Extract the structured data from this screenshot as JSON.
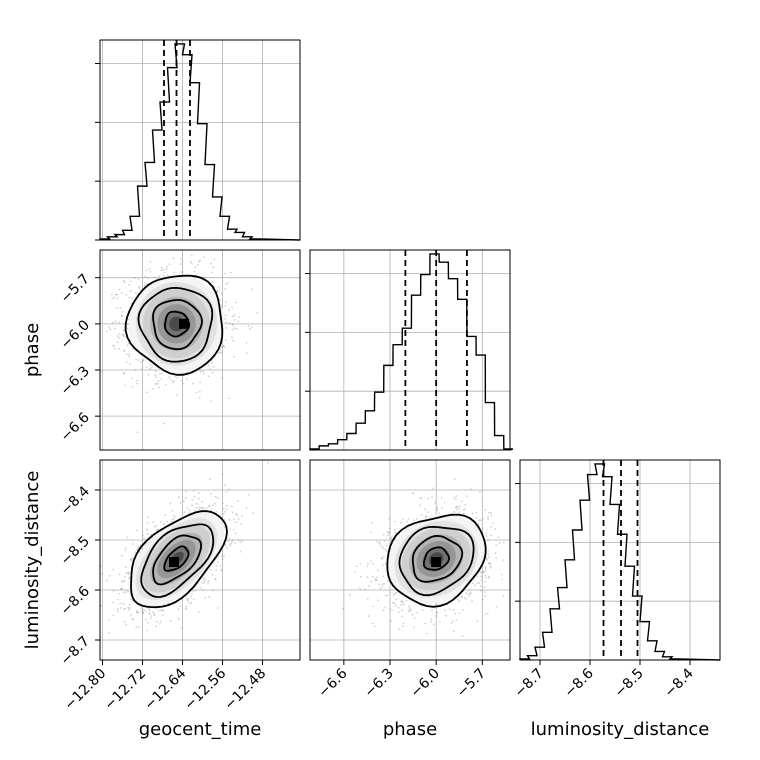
{
  "chart_data": {
    "type": "corner",
    "parameters": [
      "geocent_time",
      "phase",
      "luminosity_distance"
    ],
    "axes_titles": {
      "bottom": [
        "geocent_time",
        "phase",
        "luminosity_distance"
      ],
      "left": [
        "",
        "phase",
        "luminosity_distance"
      ]
    },
    "ranges": {
      "geocent_time": [
        -12.805,
        -12.405
      ],
      "phase": [
        -6.82,
        -5.52
      ],
      "luminosity_distance": [
        -8.74,
        -8.34
      ]
    },
    "ticks": {
      "geocent_time": {
        "values": [
          -12.8,
          -12.72,
          -12.64,
          -12.56,
          -12.48
        ],
        "labels": [
          "−12.80",
          "−12.72",
          "−12.64",
          "−12.56",
          "−12.48"
        ]
      },
      "phase": {
        "values": [
          -6.6,
          -6.3,
          -6.0,
          -5.7
        ],
        "labels": [
          "−6.6",
          "−6.3",
          "−6.0",
          "−5.7"
        ]
      },
      "luminosity_distance": {
        "values": [
          -8.7,
          -8.6,
          -8.5,
          -8.4
        ],
        "labels": [
          "−8.7",
          "−8.6",
          "−8.5",
          "−8.4"
        ]
      }
    },
    "marginals": [
      {
        "parameter": "geocent_time",
        "quantiles": [
          -12.677,
          -12.652,
          -12.625
        ],
        "bins": [
          [
            -12.805,
            0.005
          ],
          [
            -12.79,
            0.015
          ],
          [
            -12.775,
            0.025
          ],
          [
            -12.76,
            0.045
          ],
          [
            -12.745,
            0.11
          ],
          [
            -12.73,
            0.25
          ],
          [
            -12.715,
            0.36
          ],
          [
            -12.7,
            0.51
          ],
          [
            -12.685,
            0.64
          ],
          [
            -12.67,
            0.8
          ],
          [
            -12.655,
            0.91
          ],
          [
            -12.64,
            0.86
          ],
          [
            -12.625,
            0.73
          ],
          [
            -12.61,
            0.54
          ],
          [
            -12.595,
            0.35
          ],
          [
            -12.58,
            0.2
          ],
          [
            -12.565,
            0.11
          ],
          [
            -12.55,
            0.05
          ],
          [
            -12.535,
            0.035
          ],
          [
            -12.52,
            0.015
          ],
          [
            -12.505,
            0.005
          ]
        ]
      },
      {
        "parameter": "phase",
        "quantiles": [
          -6.2,
          -6.0,
          -5.8
        ],
        "bins": [
          [
            -6.82,
            0.005
          ],
          [
            -6.76,
            0.02
          ],
          [
            -6.7,
            0.03
          ],
          [
            -6.64,
            0.05
          ],
          [
            -6.58,
            0.08
          ],
          [
            -6.52,
            0.13
          ],
          [
            -6.46,
            0.19
          ],
          [
            -6.4,
            0.28
          ],
          [
            -6.34,
            0.41
          ],
          [
            -6.28,
            0.51
          ],
          [
            -6.22,
            0.59
          ],
          [
            -6.16,
            0.75
          ],
          [
            -6.1,
            0.85
          ],
          [
            -6.04,
            0.95
          ],
          [
            -5.98,
            0.91
          ],
          [
            -5.92,
            0.83
          ],
          [
            -5.86,
            0.73
          ],
          [
            -5.8,
            0.55
          ],
          [
            -5.74,
            0.46
          ],
          [
            -5.68,
            0.23
          ],
          [
            -5.62,
            0.07
          ],
          [
            -5.56,
            0.005
          ]
        ]
      },
      {
        "parameter": "luminosity_distance",
        "quantiles": [
          -8.573,
          -8.538,
          -8.505
        ],
        "bins": [
          [
            -8.74,
            0.005
          ],
          [
            -8.725,
            0.02
          ],
          [
            -8.71,
            0.06
          ],
          [
            -8.695,
            0.13
          ],
          [
            -8.68,
            0.24
          ],
          [
            -8.665,
            0.34
          ],
          [
            -8.65,
            0.47
          ],
          [
            -8.635,
            0.61
          ],
          [
            -8.62,
            0.75
          ],
          [
            -8.605,
            0.87
          ],
          [
            -8.59,
            0.92
          ],
          [
            -8.575,
            0.86
          ],
          [
            -8.56,
            0.73
          ],
          [
            -8.545,
            0.59
          ],
          [
            -8.53,
            0.44
          ],
          [
            -8.515,
            0.3
          ],
          [
            -8.5,
            0.18
          ],
          [
            -8.485,
            0.09
          ],
          [
            -8.47,
            0.04
          ],
          [
            -8.455,
            0.015
          ],
          [
            -8.44,
            0.005
          ]
        ]
      }
    ],
    "joints": [
      {
        "x": "geocent_time",
        "y": "phase",
        "mean": [
          -12.652,
          -6.0
        ],
        "sd": [
          0.048,
          0.16
        ],
        "corr": 0.0,
        "peak": [
          -12.637,
          -6.0
        ]
      },
      {
        "x": "geocent_time",
        "y": "luminosity_distance",
        "mean": [
          -12.652,
          -8.538
        ],
        "sd": [
          0.048,
          0.048
        ],
        "corr": 0.55,
        "peak": [
          -12.657,
          -8.544
        ]
      },
      {
        "x": "phase",
        "y": "luminosity_distance",
        "mean": [
          -6.0,
          -8.538
        ],
        "sd": [
          0.16,
          0.045
        ],
        "corr": 0.18,
        "peak": [
          -6.0,
          -8.544
        ]
      }
    ],
    "contour_levels_sigma": [
      0.5,
      1.0,
      1.5,
      2.0
    ],
    "grid": true,
    "legend": "none"
  }
}
